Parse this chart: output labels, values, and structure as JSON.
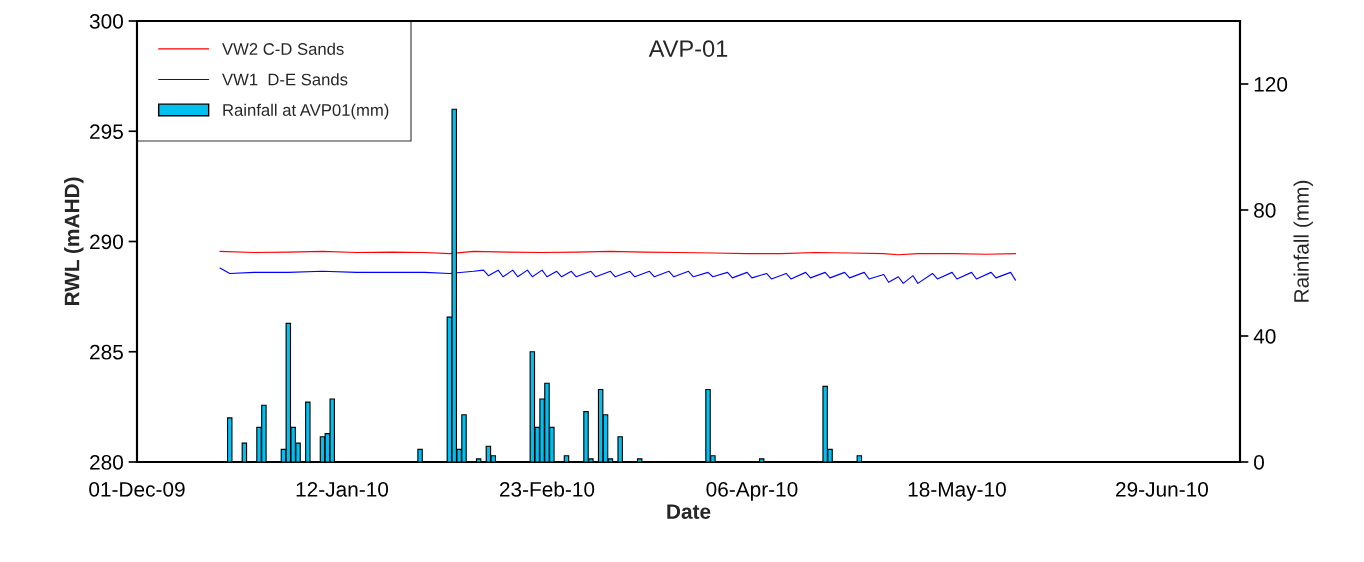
{
  "chart_data": {
    "type": "line",
    "title": "AVP-01",
    "xlabel": "Date",
    "ylabel": "RWL (mAHD)",
    "y2label": "Rainfall (mm)",
    "xlim": [
      "2009-12-01",
      "2010-07-15"
    ],
    "xticks": [
      {
        "value": "2009-12-01",
        "label": "01-Dec-09"
      },
      {
        "value": "2010-01-12",
        "label": "12-Jan-10"
      },
      {
        "value": "2010-02-23",
        "label": "23-Feb-10"
      },
      {
        "value": "2010-04-06",
        "label": "06-Apr-10"
      },
      {
        "value": "2010-05-18",
        "label": "18-May-10"
      },
      {
        "value": "2010-06-29",
        "label": "29-Jun-10"
      }
    ],
    "ylim": [
      280,
      300
    ],
    "yticks": [
      280,
      285,
      290,
      295,
      300
    ],
    "y2lim": [
      0,
      140
    ],
    "y2ticks": [
      0,
      40,
      80,
      120
    ],
    "legend": "top left",
    "grid": false,
    "series": [
      {
        "name": "VW2 C-D Sands",
        "color": "#ff0000",
        "x": [
          "2009-12-18",
          "2009-12-25",
          "2010-01-01",
          "2010-01-08",
          "2010-01-15",
          "2010-01-22",
          "2010-01-29",
          "2010-02-03",
          "2010-02-08",
          "2010-02-15",
          "2010-02-22",
          "2010-03-01",
          "2010-03-08",
          "2010-03-15",
          "2010-03-22",
          "2010-03-29",
          "2010-04-05",
          "2010-04-12",
          "2010-04-19",
          "2010-04-26",
          "2010-05-03",
          "2010-05-06",
          "2010-05-10",
          "2010-05-17",
          "2010-05-24",
          "2010-05-30"
        ],
        "values": [
          289.55,
          289.5,
          289.52,
          289.55,
          289.5,
          289.52,
          289.5,
          289.45,
          289.55,
          289.52,
          289.5,
          289.52,
          289.55,
          289.52,
          289.5,
          289.48,
          289.45,
          289.45,
          289.5,
          289.48,
          289.45,
          289.4,
          289.45,
          289.45,
          289.42,
          289.45
        ]
      },
      {
        "name": "VW1  D-E Sands",
        "color": "#0000ff",
        "x": [
          "2009-12-18",
          "2009-12-20",
          "2009-12-25",
          "2010-01-01",
          "2010-01-08",
          "2010-01-15",
          "2010-01-22",
          "2010-01-29",
          "2010-02-03",
          "2010-02-08",
          "2010-02-10",
          "2010-02-11",
          "2010-02-13",
          "2010-02-14",
          "2010-02-16",
          "2010-02-17",
          "2010-02-19",
          "2010-02-20",
          "2010-02-22",
          "2010-02-23",
          "2010-02-25",
          "2010-02-26",
          "2010-02-28",
          "2010-03-01",
          "2010-03-04",
          "2010-03-05",
          "2010-03-08",
          "2010-03-09",
          "2010-03-12",
          "2010-03-13",
          "2010-03-16",
          "2010-03-17",
          "2010-03-20",
          "2010-03-21",
          "2010-03-24",
          "2010-03-25",
          "2010-03-28",
          "2010-03-29",
          "2010-04-01",
          "2010-04-02",
          "2010-04-05",
          "2010-04-06",
          "2010-04-09",
          "2010-04-10",
          "2010-04-13",
          "2010-04-14",
          "2010-04-17",
          "2010-04-18",
          "2010-04-21",
          "2010-04-22",
          "2010-04-25",
          "2010-04-26",
          "2010-04-29",
          "2010-04-30",
          "2010-05-03",
          "2010-05-04",
          "2010-05-06",
          "2010-05-07",
          "2010-05-09",
          "2010-05-10",
          "2010-05-13",
          "2010-05-14",
          "2010-05-17",
          "2010-05-18",
          "2010-05-21",
          "2010-05-22",
          "2010-05-25",
          "2010-05-26",
          "2010-05-29",
          "2010-05-30"
        ],
        "values": [
          288.8,
          288.55,
          288.6,
          288.6,
          288.65,
          288.6,
          288.6,
          288.6,
          288.55,
          288.65,
          288.7,
          288.45,
          288.7,
          288.4,
          288.7,
          288.4,
          288.7,
          288.4,
          288.7,
          288.4,
          288.65,
          288.4,
          288.65,
          288.4,
          288.65,
          288.4,
          288.65,
          288.4,
          288.65,
          288.4,
          288.65,
          288.4,
          288.65,
          288.4,
          288.65,
          288.4,
          288.6,
          288.4,
          288.6,
          288.35,
          288.6,
          288.35,
          288.55,
          288.3,
          288.55,
          288.3,
          288.6,
          288.35,
          288.6,
          288.35,
          288.6,
          288.35,
          288.6,
          288.3,
          288.5,
          288.15,
          288.4,
          288.1,
          288.45,
          288.1,
          288.55,
          288.3,
          288.6,
          288.3,
          288.6,
          288.3,
          288.6,
          288.35,
          288.6,
          288.25
        ]
      },
      {
        "name": "Rainfall at AVP01(mm)",
        "type": "bar",
        "axis": "y2",
        "color": "#00c0f0",
        "x": [
          "2009-12-20",
          "2009-12-23",
          "2009-12-26",
          "2009-12-27",
          "2009-12-31",
          "2010-01-01",
          "2010-01-02",
          "2010-01-03",
          "2010-01-05",
          "2010-01-08",
          "2010-01-09",
          "2010-01-10",
          "2010-01-28",
          "2010-02-03",
          "2010-02-04",
          "2010-02-05",
          "2010-02-06",
          "2010-02-09",
          "2010-02-11",
          "2010-02-12",
          "2010-02-20",
          "2010-02-21",
          "2010-02-22",
          "2010-02-23",
          "2010-02-24",
          "2010-02-27",
          "2010-03-03",
          "2010-03-04",
          "2010-03-06",
          "2010-03-07",
          "2010-03-08",
          "2010-03-10",
          "2010-03-14",
          "2010-03-28",
          "2010-03-29",
          "2010-04-08",
          "2010-04-21",
          "2010-04-22",
          "2010-04-28"
        ],
        "values": [
          14,
          6,
          11,
          18,
          4,
          44,
          11,
          6,
          19,
          8,
          9,
          20,
          4,
          46,
          112,
          4,
          15,
          1,
          5,
          2,
          35,
          11,
          20,
          25,
          11,
          2,
          16,
          1,
          23,
          15,
          1,
          8,
          1,
          23,
          2,
          1,
          24,
          4,
          2
        ]
      }
    ]
  }
}
